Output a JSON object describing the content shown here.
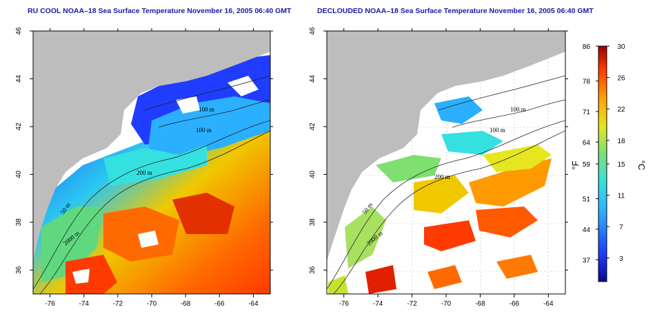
{
  "panels": [
    {
      "title": "RU COOL NOAA–18 Sea Surface Temperature November 16, 2005 06:40 GMT"
    },
    {
      "title": "DECLOUDED NOAA–18 Sea Surface Temperature November 16, 2005 06:40 GMT"
    }
  ],
  "axes": {
    "lon_ticks": [
      "-76",
      "-74",
      "-72",
      "-70",
      "-68",
      "-66",
      "-64"
    ],
    "lat_ticks": [
      "36",
      "38",
      "40",
      "42",
      "44",
      "46"
    ]
  },
  "depth_labels": [
    "100 m",
    "100 m",
    "200 m",
    "200 m",
    "50 m",
    "2000 m",
    "50 m",
    "2000 m"
  ],
  "colorbar": {
    "fahrenheit_ticks": [
      "86",
      "78",
      "71",
      "64",
      "59",
      "51",
      "44",
      "37"
    ],
    "celsius_ticks": [
      "30",
      "26",
      "22",
      "18",
      "15",
      "11",
      "7",
      "3"
    ],
    "fahrenheit_unit": "°F",
    "celsius_unit": "°C"
  },
  "colors": {
    "land": "#bdbdbd",
    "cloud_or_no_data": "#ffffff",
    "title": "#1a1aa6"
  }
}
